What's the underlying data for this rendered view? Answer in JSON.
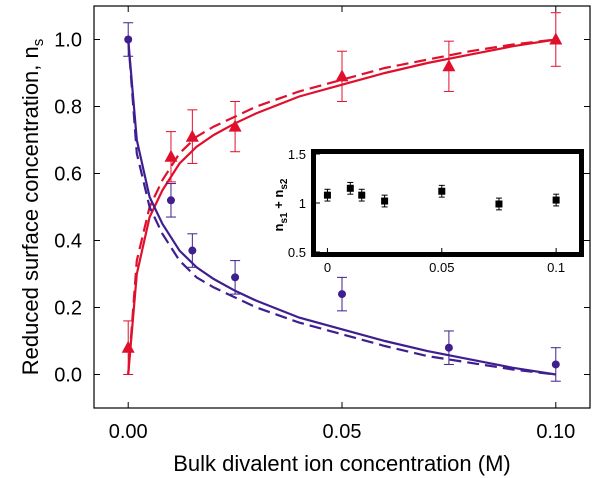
{
  "chart_data": [
    {
      "type": "scatter",
      "title": "",
      "xlabel": "Bulk divalent ion concentration (M)",
      "ylabel": "Reduced surface concentration, n",
      "ylabel_sub": "s",
      "xlim": [
        -0.008,
        0.108
      ],
      "ylim": [
        -0.1,
        1.1
      ],
      "x_ticks": [
        0.0,
        0.05,
        0.1
      ],
      "x_tick_labels": [
        "0.00",
        "0.05",
        "0.10"
      ],
      "y_ticks": [
        0.0,
        0.2,
        0.4,
        0.6,
        0.8,
        1.0
      ],
      "y_tick_labels": [
        "0.0",
        "0.2",
        "0.4",
        "0.6",
        "0.8",
        "1.0"
      ],
      "grid": false,
      "colors": {
        "red": "#e0102d",
        "blue": "#3f1f8f",
        "black": "#000000"
      },
      "series": [
        {
          "marker": "triangle",
          "color": "red",
          "x": [
            0.0,
            0.01,
            0.015,
            0.025,
            0.05,
            0.075,
            0.1
          ],
          "y": [
            0.08,
            0.65,
            0.71,
            0.74,
            0.89,
            0.92,
            1.0
          ],
          "err": [
            0.08,
            0.075,
            0.08,
            0.075,
            0.075,
            0.075,
            0.08
          ]
        },
        {
          "marker": "circle",
          "color": "blue",
          "x": [
            0.0,
            0.01,
            0.015,
            0.025,
            0.05,
            0.075,
            0.1
          ],
          "y": [
            1.0,
            0.52,
            0.37,
            0.29,
            0.24,
            0.08,
            0.03
          ],
          "err": [
            0.05,
            0.05,
            0.05,
            0.05,
            0.05,
            0.05,
            0.05
          ]
        },
        {
          "line": "solid",
          "color": "red",
          "x": [
            0.0,
            0.002,
            0.005,
            0.008,
            0.012,
            0.016,
            0.02,
            0.025,
            0.03,
            0.04,
            0.05,
            0.06,
            0.07,
            0.08,
            0.09,
            0.1
          ],
          "y": [
            0.0,
            0.3,
            0.47,
            0.55,
            0.63,
            0.68,
            0.715,
            0.75,
            0.78,
            0.83,
            0.865,
            0.9,
            0.93,
            0.955,
            0.98,
            1.0
          ]
        },
        {
          "line": "dashed",
          "color": "red",
          "x": [
            0.0,
            0.002,
            0.005,
            0.008,
            0.012,
            0.016,
            0.02,
            0.025,
            0.03,
            0.04,
            0.05,
            0.06,
            0.07,
            0.08,
            0.09,
            0.1
          ],
          "y": [
            0.0,
            0.34,
            0.5,
            0.58,
            0.66,
            0.71,
            0.74,
            0.77,
            0.8,
            0.845,
            0.88,
            0.915,
            0.94,
            0.965,
            0.985,
            1.0
          ]
        },
        {
          "line": "solid",
          "color": "blue",
          "x": [
            0.0,
            0.002,
            0.005,
            0.008,
            0.012,
            0.016,
            0.02,
            0.025,
            0.03,
            0.04,
            0.05,
            0.06,
            0.07,
            0.08,
            0.09,
            0.1
          ],
          "y": [
            1.0,
            0.7,
            0.53,
            0.45,
            0.37,
            0.32,
            0.285,
            0.25,
            0.22,
            0.17,
            0.135,
            0.1,
            0.07,
            0.045,
            0.02,
            0.0
          ]
        },
        {
          "line": "dashed",
          "color": "blue",
          "x": [
            0.0,
            0.002,
            0.005,
            0.008,
            0.012,
            0.016,
            0.02,
            0.025,
            0.03,
            0.04,
            0.05,
            0.06,
            0.07,
            0.08,
            0.09,
            0.1
          ],
          "y": [
            1.0,
            0.66,
            0.5,
            0.42,
            0.34,
            0.29,
            0.26,
            0.23,
            0.2,
            0.155,
            0.12,
            0.085,
            0.055,
            0.035,
            0.015,
            0.0
          ]
        }
      ]
    },
    {
      "type": "scatter",
      "title": "",
      "xlabel": "",
      "ylabel": "n",
      "ylabel_parts": [
        "n",
        "s1",
        " + n",
        "s2"
      ],
      "xlim": [
        -0.005,
        0.11
      ],
      "ylim": [
        0.5,
        1.5
      ],
      "x_ticks": [
        0.0,
        0.05,
        0.1
      ],
      "x_tick_labels": [
        "0",
        "0.05",
        "0.1"
      ],
      "y_ticks": [
        0.5,
        1.0,
        1.5
      ],
      "y_tick_labels": [
        "0.5",
        "1",
        "1.5"
      ],
      "grid": false,
      "series": [
        {
          "marker": "square",
          "color": "black",
          "x": [
            0.0,
            0.01,
            0.015,
            0.025,
            0.05,
            0.075,
            0.1
          ],
          "y": [
            1.08,
            1.15,
            1.08,
            1.02,
            1.12,
            0.99,
            1.03
          ],
          "err": [
            0.06,
            0.06,
            0.06,
            0.06,
            0.06,
            0.06,
            0.06
          ]
        }
      ]
    }
  ]
}
